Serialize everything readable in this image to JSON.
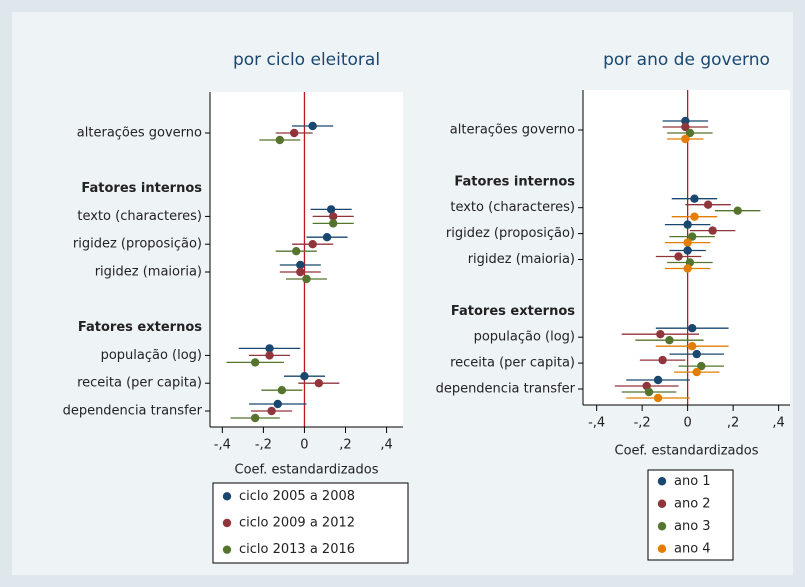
{
  "chart_data": [
    {
      "type": "coefplot",
      "title": "por ciclo eleitoral",
      "xlabel": "Coef. estandardizados",
      "groups": [
        {
          "categories": [
            "alterações governo"
          ]
        },
        {
          "name": "Fatores internos",
          "categories": [
            "texto (characteres)",
            "rigidez (proposição)",
            "rigidez (maioria)"
          ]
        },
        {
          "name": "Fatores externos",
          "categories": [
            "população (log)",
            "receita (per capita)",
            "dependencia transfer"
          ]
        }
      ],
      "series": [
        {
          "name": "ciclo 2005 a 2008",
          "color": "#1a476f",
          "values": [
            0.04,
            0.13,
            0.11,
            -0.02,
            -0.17,
            0.0,
            -0.13
          ],
          "errors": [
            0.1,
            0.1,
            0.1,
            0.1,
            0.15,
            0.1,
            0.14
          ]
        },
        {
          "name": "ciclo 2009 a 2012",
          "color": "#90353b",
          "values": [
            -0.05,
            0.14,
            0.04,
            -0.02,
            -0.17,
            0.07,
            -0.16
          ],
          "errors": [
            0.09,
            0.1,
            0.1,
            0.1,
            0.1,
            0.1,
            0.1
          ]
        },
        {
          "name": "ciclo 2013 a 2016",
          "color": "#55752f",
          "values": [
            -0.12,
            0.14,
            -0.04,
            0.01,
            -0.24,
            -0.11,
            -0.24
          ],
          "errors": [
            0.1,
            0.1,
            0.1,
            0.1,
            0.14,
            0.1,
            0.12
          ]
        }
      ],
      "xlim": [
        -0.46,
        0.48
      ],
      "xticks": [
        {
          "value": -0.4,
          "label": "-,4"
        },
        {
          "value": -0.2,
          "label": "-,2"
        },
        0,
        {
          "value": 0.2,
          "label": ",2"
        },
        {
          "value": 0.4,
          "label": ",4"
        }
      ]
    },
    {
      "type": "coefplot",
      "title": "por ano de governo",
      "xlabel": "Coef. estandardizados",
      "groups": [
        {
          "categories": [
            "alterações governo"
          ]
        },
        {
          "name": "Fatores internos",
          "categories": [
            "texto (characteres)",
            "rigidez (proposição)",
            "rigidez (maioria)"
          ]
        },
        {
          "name": "Fatores externos",
          "categories": [
            "população (log)",
            "receita (per capita)",
            "dependencia transfer"
          ]
        }
      ],
      "series": [
        {
          "name": "ano 1",
          "color": "#1a476f",
          "values": [
            -0.01,
            0.03,
            0.0,
            0.0,
            0.02,
            0.04,
            -0.13
          ],
          "errors": [
            0.1,
            0.1,
            0.1,
            0.08,
            0.16,
            0.12,
            0.14
          ]
        },
        {
          "name": "ano 2",
          "color": "#90353b",
          "values": [
            -0.01,
            0.09,
            0.11,
            -0.04,
            -0.12,
            -0.11,
            -0.18
          ],
          "errors": [
            0.1,
            0.1,
            0.1,
            0.1,
            0.17,
            0.1,
            0.14
          ]
        },
        {
          "name": "ano 3",
          "color": "#55752f",
          "values": [
            0.01,
            0.22,
            0.02,
            0.01,
            -0.08,
            0.06,
            -0.17
          ],
          "errors": [
            0.1,
            0.1,
            0.1,
            0.1,
            0.15,
            0.1,
            0.12
          ]
        },
        {
          "name": "ano 4",
          "color": "#e37e00",
          "values": [
            -0.01,
            0.03,
            0.0,
            0.0,
            0.02,
            0.04,
            -0.13
          ],
          "errors": [
            0.08,
            0.1,
            0.1,
            0.1,
            0.16,
            0.1,
            0.14
          ]
        }
      ],
      "xlim": [
        -0.46,
        0.45
      ],
      "xticks": [
        {
          "value": -0.4,
          "label": "-,4"
        },
        {
          "value": -0.2,
          "label": "-,2"
        },
        0,
        {
          "value": 0.2,
          "label": ",2"
        },
        {
          "value": 0.4,
          "label": ",4"
        }
      ]
    }
  ]
}
